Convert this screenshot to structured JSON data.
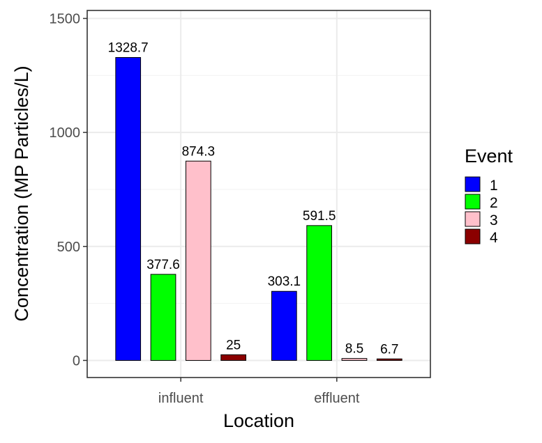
{
  "chart_data": {
    "type": "bar",
    "categories": [
      "influent",
      "effluent"
    ],
    "series": [
      {
        "name": "1",
        "values": [
          1328.7,
          303.1
        ],
        "labels": [
          "1328.7",
          "303.1"
        ],
        "color": "#0000ff"
      },
      {
        "name": "2",
        "values": [
          377.6,
          591.5
        ],
        "labels": [
          "377.6",
          "591.5"
        ],
        "color": "#00ff00"
      },
      {
        "name": "3",
        "values": [
          874.3,
          8.5
        ],
        "labels": [
          "874.3",
          "8.5"
        ],
        "color": "#ffc0cb"
      },
      {
        "name": "4",
        "values": [
          25,
          6.7
        ],
        "labels": [
          "25",
          "6.7"
        ],
        "color": "#8b0000"
      }
    ],
    "xlabel": "Location",
    "ylabel": "Concentration (MP Particles/L)",
    "ylim": [
      -75,
      1535
    ],
    "yticks": [
      0,
      500,
      1000,
      1500
    ],
    "ytick_labels": [
      "0",
      "500",
      "1000",
      "1500"
    ],
    "grid": true,
    "legend": {
      "title": "Event",
      "position": "right"
    }
  }
}
